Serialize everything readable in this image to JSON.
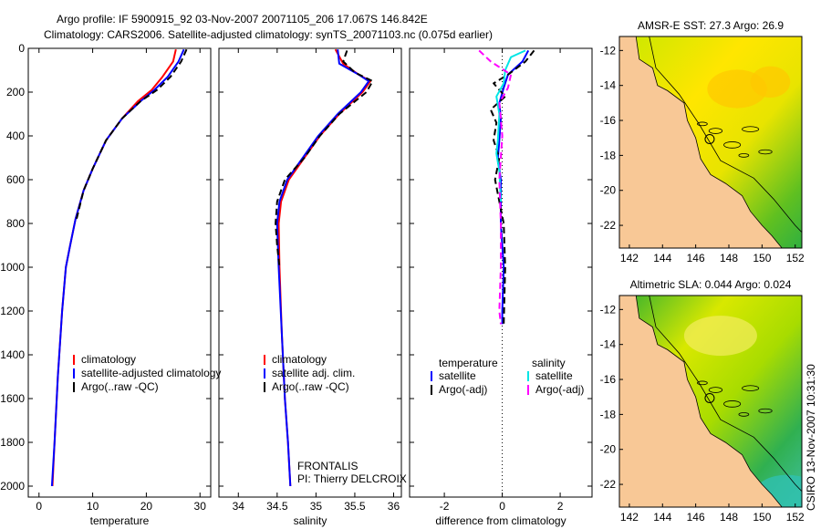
{
  "header": {
    "line1": "Argo profile: IF 5900915_92 03-Nov-2007 20071105_206 17.067S 146.842E",
    "line2": "Climatology: CARS2006. Satellite-adjusted climatology: synTS_20071103.nc (0.075d earlier)"
  },
  "side_label": "CSIRO 13-Nov-2007 10:31:30",
  "colors": {
    "climatology": "#ff0000",
    "satellite": "#0000ff",
    "argo": "#000000",
    "sal_satellite": "#00e5e5",
    "sal_argo": "#ff00ff",
    "land": "#f8c896",
    "ocean_warm": "#ffe000",
    "ocean_mid": "#b8e000",
    "ocean_cool": "#20b020"
  },
  "chart_data": [
    {
      "type": "line",
      "xlabel": "temperature",
      "xlim": [
        -2,
        32
      ],
      "ylim": [
        0,
        2050
      ],
      "y_reversed": true,
      "xticks": [
        0,
        10,
        20,
        30
      ],
      "yticks": [
        0,
        200,
        400,
        600,
        800,
        1000,
        1200,
        1400,
        1600,
        1800,
        2000
      ],
      "legend": [
        "climatology",
        "satellite-adjusted climatology",
        "Argo(..raw -QC)"
      ],
      "series": [
        {
          "name": "climatology",
          "color": "#ff0000",
          "points": [
            [
              25.5,
              5
            ],
            [
              25,
              60
            ],
            [
              23,
              130
            ],
            [
              21,
              190
            ],
            [
              18.5,
              240
            ],
            [
              15.5,
              320
            ],
            [
              12.5,
              420
            ],
            [
              10,
              550
            ],
            [
              8.3,
              650
            ],
            [
              6.8,
              780
            ],
            [
              5.8,
              900
            ],
            [
              5,
              1000
            ],
            [
              4.3,
              1200
            ],
            [
              3.5,
              1500
            ],
            [
              2.9,
              1800
            ],
            [
              2.5,
              2000
            ]
          ]
        },
        {
          "name": "satellite-adjusted climatology",
          "color": "#0000ff",
          "points": [
            [
              27,
              5
            ],
            [
              26,
              60
            ],
            [
              24,
              130
            ],
            [
              21.5,
              190
            ],
            [
              19,
              240
            ],
            [
              15.5,
              320
            ],
            [
              12.5,
              420
            ],
            [
              10,
              550
            ],
            [
              8.3,
              650
            ],
            [
              6.8,
              780
            ],
            [
              5.8,
              900
            ],
            [
              5,
              1000
            ],
            [
              4.3,
              1200
            ],
            [
              3.5,
              1500
            ],
            [
              2.9,
              1800
            ],
            [
              2.4,
              2000
            ]
          ]
        },
        {
          "name": "Argo(..raw -QC)",
          "color": "#000000",
          "dashed": true,
          "points": [
            [
              27.5,
              5
            ],
            [
              26.5,
              60
            ],
            [
              24.5,
              130
            ],
            [
              22,
              190
            ],
            [
              19,
              240
            ],
            [
              15.5,
              320
            ],
            [
              12.5,
              420
            ],
            [
              10,
              550
            ],
            [
              8.3,
              650
            ],
            [
              7,
              780
            ]
          ]
        }
      ]
    },
    {
      "type": "line",
      "xlabel": "salinity",
      "xlim": [
        33.75,
        36.1
      ],
      "ylim": [
        0,
        2050
      ],
      "y_reversed": true,
      "xticks": [
        34,
        34.5,
        35,
        35.5,
        36
      ],
      "xtick_labels": [
        "34",
        "34.5",
        "35",
        "35.5",
        "36"
      ],
      "legend": [
        "climatology",
        "satellite adj. clim.",
        "Argo(..raw -QC)"
      ],
      "annotation": [
        "FRONTALIS",
        "PI: Thierry DELCROIX"
      ],
      "series": [
        {
          "name": "climatology",
          "color": "#ff0000",
          "points": [
            [
              35.25,
              5
            ],
            [
              35.35,
              70
            ],
            [
              35.55,
              120
            ],
            [
              35.7,
              150
            ],
            [
              35.6,
              200
            ],
            [
              35.3,
              300
            ],
            [
              35.05,
              400
            ],
            [
              34.85,
              500
            ],
            [
              34.65,
              600
            ],
            [
              34.55,
              700
            ],
            [
              34.52,
              800
            ],
            [
              34.53,
              1000
            ],
            [
              34.56,
              1300
            ],
            [
              34.6,
              1600
            ],
            [
              34.64,
              1800
            ],
            [
              34.67,
              2000
            ]
          ]
        },
        {
          "name": "satellite adj. clim.",
          "color": "#0000ff",
          "points": [
            [
              35.28,
              5
            ],
            [
              35.3,
              70
            ],
            [
              35.55,
              120
            ],
            [
              35.68,
              150
            ],
            [
              35.58,
              200
            ],
            [
              35.28,
              300
            ],
            [
              35.03,
              400
            ],
            [
              34.83,
              500
            ],
            [
              34.63,
              600
            ],
            [
              34.53,
              700
            ],
            [
              34.5,
              800
            ],
            [
              34.52,
              1000
            ],
            [
              34.56,
              1300
            ],
            [
              34.6,
              1600
            ],
            [
              34.64,
              1800
            ],
            [
              34.67,
              2000
            ]
          ]
        },
        {
          "name": "Argo(..raw -QC)",
          "color": "#000000",
          "dashed": true,
          "points": [
            [
              35.4,
              10
            ],
            [
              35.35,
              60
            ],
            [
              35.5,
              110
            ],
            [
              35.73,
              150
            ],
            [
              35.65,
              200
            ],
            [
              35.3,
              300
            ],
            [
              35.05,
              400
            ],
            [
              34.85,
              500
            ],
            [
              34.6,
              600
            ],
            [
              34.5,
              700
            ],
            [
              34.48,
              800
            ],
            [
              34.5,
              900
            ],
            [
              34.53,
              1000
            ]
          ]
        }
      ]
    },
    {
      "type": "line",
      "xlabel": "difference from climatology",
      "xlim": [
        -3.2,
        3.1
      ],
      "ylim": [
        0,
        2050
      ],
      "y_reversed": true,
      "xticks": [
        -2,
        0,
        2
      ],
      "legend_columns": [
        {
          "heading": "temperature",
          "entries": [
            "satellite",
            "Argo(-adj)"
          ]
        },
        {
          "heading": "salinity",
          "entries": [
            "satellite",
            "Argo(-adj)"
          ]
        }
      ],
      "series": [
        {
          "name": "temperature satellite",
          "color": "#0000ff",
          "points": [
            [
              0.9,
              10
            ],
            [
              0.7,
              60
            ],
            [
              0.2,
              120
            ],
            [
              0.05,
              180
            ],
            [
              -0.1,
              250
            ],
            [
              -0.05,
              320
            ],
            [
              -0.1,
              420
            ],
            [
              -0.15,
              500
            ],
            [
              -0.05,
              600
            ],
            [
              -0.05,
              800
            ],
            [
              0.05,
              1000
            ],
            [
              0,
              1200
            ],
            [
              0,
              1260
            ]
          ]
        },
        {
          "name": "temperature Argo(-adj)",
          "color": "#000000",
          "dashed": true,
          "points": [
            [
              1.1,
              10
            ],
            [
              0.8,
              60
            ],
            [
              0.2,
              120
            ],
            [
              -0.3,
              160
            ],
            [
              0.1,
              220
            ],
            [
              -0.4,
              280
            ],
            [
              -0.2,
              340
            ],
            [
              -0.3,
              420
            ],
            [
              -0.1,
              500
            ],
            [
              -0.25,
              600
            ],
            [
              -0.1,
              700
            ],
            [
              0.05,
              800
            ],
            [
              0.1,
              1000
            ],
            [
              0.05,
              1260
            ]
          ]
        },
        {
          "name": "salinity satellite",
          "color": "#00e5e5",
          "points": [
            [
              0.8,
              10
            ],
            [
              0.3,
              40
            ],
            [
              0.1,
              100
            ],
            [
              0.05,
              160
            ],
            [
              -0.2,
              220
            ],
            [
              -0.1,
              300
            ],
            [
              -0.15,
              420
            ],
            [
              -0.2,
              480
            ],
            [
              -0.1,
              560
            ],
            [
              -0.05,
              700
            ]
          ]
        },
        {
          "name": "salinity Argo(-adj)",
          "color": "#ff00ff",
          "dashed": true,
          "points": [
            [
              -0.8,
              10
            ],
            [
              -0.4,
              60
            ],
            [
              0.3,
              120
            ],
            [
              0.2,
              180
            ],
            [
              -0.1,
              250
            ],
            [
              0,
              400
            ],
            [
              -0.1,
              600
            ],
            [
              -0.05,
              800
            ],
            [
              -0.05,
              1000
            ],
            [
              -0.1,
              1200
            ],
            [
              -0.05,
              1260
            ]
          ]
        }
      ]
    },
    {
      "type": "heatmap",
      "title": "AMSR-E SST: 27.3 Argo: 26.9",
      "xlim": [
        141.4,
        152.4
      ],
      "ylim": [
        -23.3,
        -11.2
      ],
      "xticks": [
        142,
        144,
        146,
        148,
        150,
        152
      ],
      "yticks": [
        -12,
        -14,
        -16,
        -18,
        -20,
        -22
      ],
      "marker": {
        "lon": 146.842,
        "lat": -17.067
      }
    },
    {
      "type": "heatmap",
      "title": "Altimetric SLA: 0.044 Argo: 0.024",
      "xlim": [
        141.4,
        152.4
      ],
      "ylim": [
        -23.3,
        -11.2
      ],
      "xticks": [
        142,
        144,
        146,
        148,
        150,
        152
      ],
      "yticks": [
        -12,
        -14,
        -16,
        -18,
        -20,
        -22
      ],
      "marker": {
        "lon": 146.842,
        "lat": -17.067
      }
    }
  ]
}
